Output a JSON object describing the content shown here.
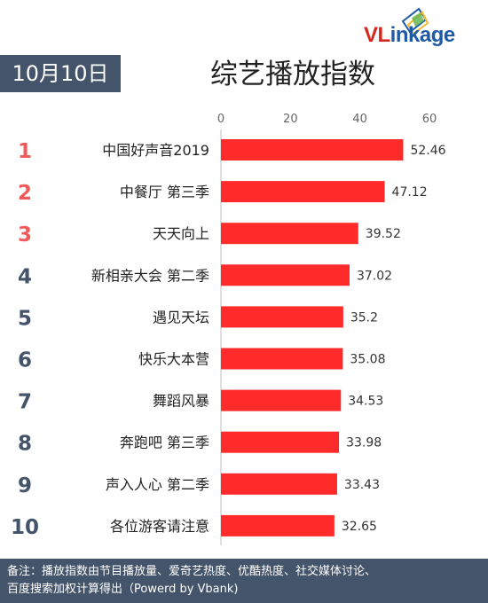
{
  "date_label": "10月10日",
  "title": "综艺播放指数",
  "logo": {
    "text_vl": "VL",
    "text_rest": "inkage"
  },
  "footer": {
    "line1": "备注：播放指数由节目播放量、爱奇艺热度、优酷热度、社交媒体讨论、",
    "line2": "百度搜索加权计算得出（Powerd by Vbank)"
  },
  "colors": {
    "bar": "#ff2b2b",
    "rank_top": "#f05a5a",
    "rank_other": "#44546a",
    "badge": "#44546a"
  },
  "chart_data": {
    "type": "bar",
    "orientation": "horizontal",
    "ranks": [
      "1",
      "2",
      "3",
      "4",
      "5",
      "6",
      "7",
      "8",
      "9",
      "10"
    ],
    "categories": [
      "中国好声音2019",
      "中餐厅 第三季",
      "天天向上",
      "新相亲大会 第二季",
      "遇见天坛",
      "快乐大本营",
      "舞蹈风暴",
      "奔跑吧 第三季",
      "声入人心 第二季",
      "各位游客请注意"
    ],
    "values": [
      52.46,
      47.12,
      39.52,
      37.02,
      35.2,
      35.08,
      34.53,
      33.98,
      33.43,
      32.65
    ],
    "value_labels": [
      "52.46",
      "47.12",
      "39.52",
      "37.02",
      "35.2",
      "35.08",
      "34.53",
      "33.98",
      "33.43",
      "32.65"
    ],
    "xlim": [
      0,
      60
    ],
    "xticks": [
      "0",
      "20",
      "40",
      "60"
    ],
    "axis_position": "top"
  }
}
